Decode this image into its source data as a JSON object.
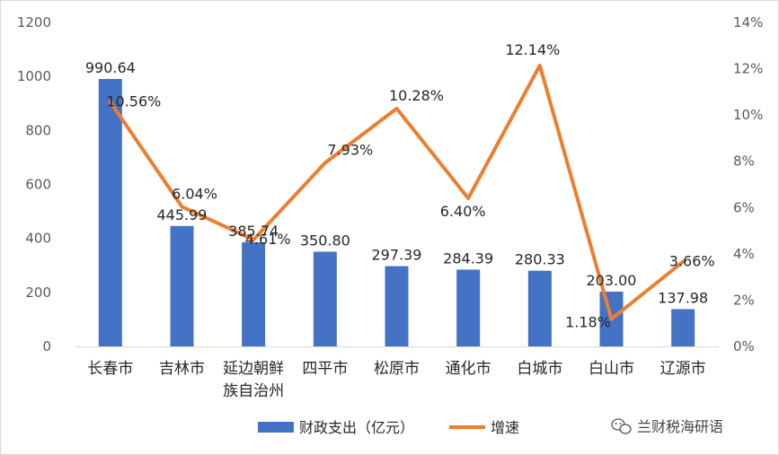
{
  "chart_data": {
    "type": "bar",
    "categories": [
      "长春市",
      "吉林市",
      "延边朝鲜族自治州",
      "四平市",
      "松原市",
      "通化市",
      "白城市",
      "白山市",
      "辽源市"
    ],
    "category_lines": [
      [
        "长春市"
      ],
      [
        "吉林市"
      ],
      [
        "延边朝鲜",
        "族自治州"
      ],
      [
        "四平市"
      ],
      [
        "松原市"
      ],
      [
        "通化市"
      ],
      [
        "白城市"
      ],
      [
        "白山市"
      ],
      [
        "辽源市"
      ]
    ],
    "series": [
      {
        "name": "财政支出（亿元）",
        "type": "bar",
        "axis": "left",
        "color": "#4472C4",
        "values": [
          990.64,
          445.99,
          385.74,
          350.8,
          297.39,
          284.39,
          280.33,
          203.0,
          137.98
        ],
        "labels": [
          "990.64",
          "445.99",
          "385.74",
          "350.80",
          "297.39",
          "284.39",
          "280.33",
          "203.00",
          "137.98"
        ]
      },
      {
        "name": "增速",
        "type": "line",
        "axis": "right",
        "color": "#ED7D31",
        "values": [
          10.56,
          6.04,
          4.61,
          7.93,
          10.28,
          6.4,
          12.14,
          1.18,
          3.66
        ],
        "labels": [
          "10.56%",
          "6.04%",
          "4.61%",
          "7.93%",
          "10.28%",
          "6.40%",
          "12.14%",
          "1.18%",
          "3.66%"
        ]
      }
    ],
    "y_left": {
      "min": 0,
      "max": 1200,
      "ticks": [
        "0",
        "200",
        "400",
        "600",
        "800",
        "1000",
        "1200"
      ]
    },
    "y_right": {
      "min": 0,
      "max": 14,
      "ticks": [
        "0%",
        "2%",
        "4%",
        "6%",
        "8%",
        "10%",
        "12%",
        "14%"
      ]
    },
    "grid": false,
    "legend_position": "bottom",
    "title": "",
    "xlabel": "",
    "ylabel": ""
  },
  "watermark": {
    "text": "兰财税海研语",
    "icon": "wechat-icon"
  }
}
